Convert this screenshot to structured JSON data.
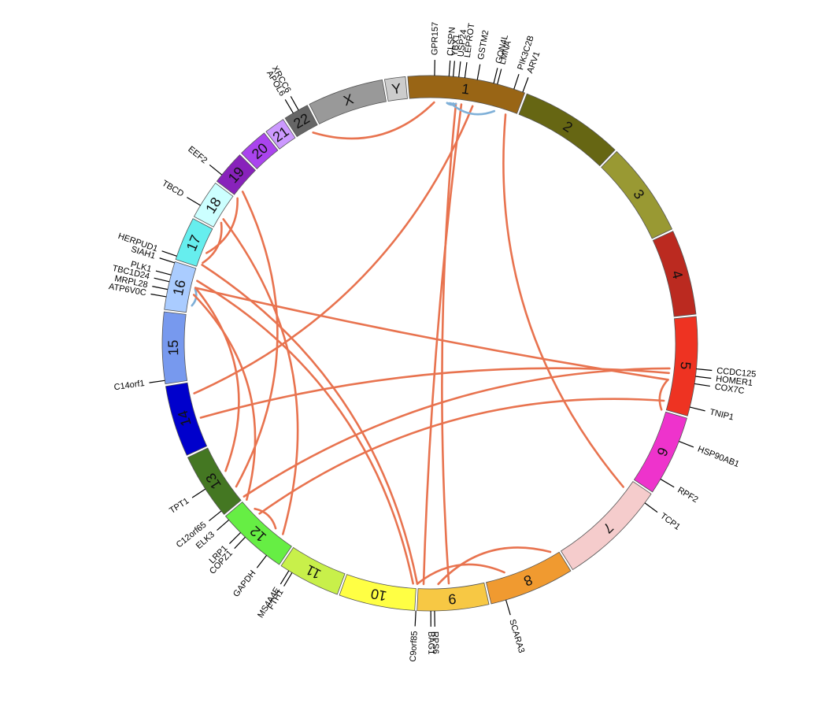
{
  "colors": {
    "link_red": "#e8734f",
    "link_blue": "#7fb0d8"
  },
  "chromosomes": [
    {
      "name": "1",
      "start": -5,
      "end": 21,
      "color": "#996515"
    },
    {
      "name": "2",
      "start": 21,
      "end": 44,
      "color": "#666613"
    },
    {
      "name": "3",
      "start": 44,
      "end": 65,
      "color": "#999933"
    },
    {
      "name": "4",
      "start": 65,
      "end": 84,
      "color": "#bb2a20"
    },
    {
      "name": "5",
      "start": 84,
      "end": 106,
      "color": "#ee3322"
    },
    {
      "name": "6",
      "start": 106,
      "end": 124,
      "color": "#ee33cc"
    },
    {
      "name": "7",
      "start": 124,
      "end": 148,
      "color": "#f5cccc"
    },
    {
      "name": "8",
      "start": 148,
      "end": 167,
      "color": "#f09a30"
    },
    {
      "name": "9",
      "start": 167,
      "end": 183,
      "color": "#f7c844"
    },
    {
      "name": "10",
      "start": 183,
      "end": 200,
      "color": "#ffff44"
    },
    {
      "name": "11",
      "start": 200,
      "end": 214,
      "color": "#c8f04a"
    },
    {
      "name": "12",
      "start": 214,
      "end": 230,
      "color": "#66ee44"
    },
    {
      "name": "13",
      "start": 230,
      "end": 245,
      "color": "#447722"
    },
    {
      "name": "14",
      "start": 245,
      "end": 261,
      "color": "#0000cc"
    },
    {
      "name": "15",
      "start": 261,
      "end": 277,
      "color": "#7799ee"
    },
    {
      "name": "16",
      "start": 277,
      "end": 288,
      "color": "#aaccff"
    },
    {
      "name": "17",
      "start": 288,
      "end": 298,
      "color": "#66eeee"
    },
    {
      "name": "18",
      "start": 298,
      "end": 307,
      "color": "#ccffff"
    },
    {
      "name": "19",
      "start": 307,
      "end": 315,
      "color": "#8822bb"
    },
    {
      "name": "20",
      "start": 315,
      "end": 322,
      "color": "#aa44ee"
    },
    {
      "name": "21",
      "start": 322,
      "end": 327,
      "color": "#cc99ff"
    },
    {
      "name": "22",
      "start": 327,
      "end": 333,
      "color": "#666666"
    },
    {
      "name": "X",
      "start": 333,
      "end": 350,
      "color": "#999999"
    },
    {
      "name": "Y",
      "start": 350,
      "end": 355,
      "color": "#cccccc"
    }
  ],
  "genes": [
    {
      "name": "GPR157",
      "angle": 1.0
    },
    {
      "name": "CLSPN",
      "angle": 4.1
    },
    {
      "name": "YBX1",
      "angle": 5.0
    },
    {
      "name": "USP24",
      "angle": 6.2
    },
    {
      "name": "LEPROT",
      "angle": 7.5
    },
    {
      "name": "GSTM2",
      "angle": 10.2
    },
    {
      "name": "GON4L",
      "angle": 13.8
    },
    {
      "name": "LMNA",
      "angle": 14.6
    },
    {
      "name": "PIK3C2B",
      "angle": 18.3
    },
    {
      "name": "ARV1",
      "angle": 20.3
    },
    {
      "name": "CCDC125",
      "angle": 95.5
    },
    {
      "name": "HOMER1",
      "angle": 97.1
    },
    {
      "name": "COX7C",
      "angle": 98.7
    },
    {
      "name": "TNIP1",
      "angle": 103.8
    },
    {
      "name": "HSP90AB1",
      "angle": 111.5
    },
    {
      "name": "RPF2",
      "angle": 120.5
    },
    {
      "name": "TCP1",
      "angle": 126.6
    },
    {
      "name": "SCARA3",
      "angle": 163.5
    },
    {
      "name": "BAG1",
      "angle": 179.8
    },
    {
      "name": "RPS6",
      "angle": 179.0
    },
    {
      "name": "C9orf85",
      "angle": 183.0
    },
    {
      "name": "MS4A4E",
      "angle": 211.8
    },
    {
      "name": "FTH1",
      "angle": 211.0
    },
    {
      "name": "GAPDH",
      "angle": 217.6
    },
    {
      "name": "COPZ1",
      "angle": 223.6
    },
    {
      "name": "LRP1",
      "angle": 225.0
    },
    {
      "name": "ELK3",
      "angle": 228.7
    },
    {
      "name": "C12orf65",
      "angle": 231.2
    },
    {
      "name": "TPT1",
      "angle": 237.0
    },
    {
      "name": "C14orf1",
      "angle": 262.0
    },
    {
      "name": "ATP6V0C",
      "angle": 280.0
    },
    {
      "name": "MRPL28",
      "angle": 281.6
    },
    {
      "name": "TBC1D24",
      "angle": 283.3
    },
    {
      "name": "PLK1",
      "angle": 284.8
    },
    {
      "name": "SIAH1",
      "angle": 287.5
    },
    {
      "name": "HERPUD1",
      "angle": 289.0
    },
    {
      "name": "TBCD",
      "angle": 301.0
    },
    {
      "name": "EEF2",
      "angle": 309.0
    },
    {
      "name": "APOL6",
      "angle": 329.3
    },
    {
      "name": "XRCC6",
      "angle": 330.6
    }
  ],
  "links": [
    {
      "from": 1.0,
      "to": 331.0,
      "color": "red"
    },
    {
      "from": 6.2,
      "to": 175.5,
      "color": "red"
    },
    {
      "from": 7.5,
      "to": 181.5,
      "color": "red"
    },
    {
      "from": 10.2,
      "to": 258.0,
      "color": "red"
    },
    {
      "from": 18.3,
      "to": 126.6,
      "color": "red"
    },
    {
      "from": 4.1,
      "to": 5.6,
      "color": "blue"
    },
    {
      "from": 5.0,
      "to": 15.5,
      "color": "blue"
    },
    {
      "from": 4.1,
      "to": 6.2,
      "color": "blue"
    },
    {
      "from": 5.6,
      "to": 4.6,
      "color": "blue"
    },
    {
      "from": 279.0,
      "to": 283.0,
      "color": "blue"
    },
    {
      "from": 97.1,
      "to": 252.0,
      "color": "red"
    },
    {
      "from": 98.7,
      "to": 283.3,
      "color": "red"
    },
    {
      "from": 98.7,
      "to": 106.0,
      "color": "red"
    },
    {
      "from": 96.0,
      "to": 230.5,
      "color": "red"
    },
    {
      "from": 103.8,
      "to": 225.0,
      "color": "red"
    },
    {
      "from": 150.0,
      "to": 178.0,
      "color": "red"
    },
    {
      "from": 162.0,
      "to": 183.0,
      "color": "red"
    },
    {
      "from": 183.0,
      "to": 289.0,
      "color": "red"
    },
    {
      "from": 184.0,
      "to": 285.0,
      "color": "red"
    },
    {
      "from": 233.5,
      "to": 309.0,
      "color": "red"
    },
    {
      "from": 238.0,
      "to": 283.3,
      "color": "red"
    },
    {
      "from": 229.5,
      "to": 281.6,
      "color": "red"
    },
    {
      "from": 219.8,
      "to": 226.6,
      "color": "red"
    },
    {
      "from": 217.6,
      "to": 301.0,
      "color": "red"
    },
    {
      "from": 289.5,
      "to": 300.0,
      "color": "red"
    },
    {
      "from": 292.0,
      "to": 307.0,
      "color": "red"
    }
  ]
}
